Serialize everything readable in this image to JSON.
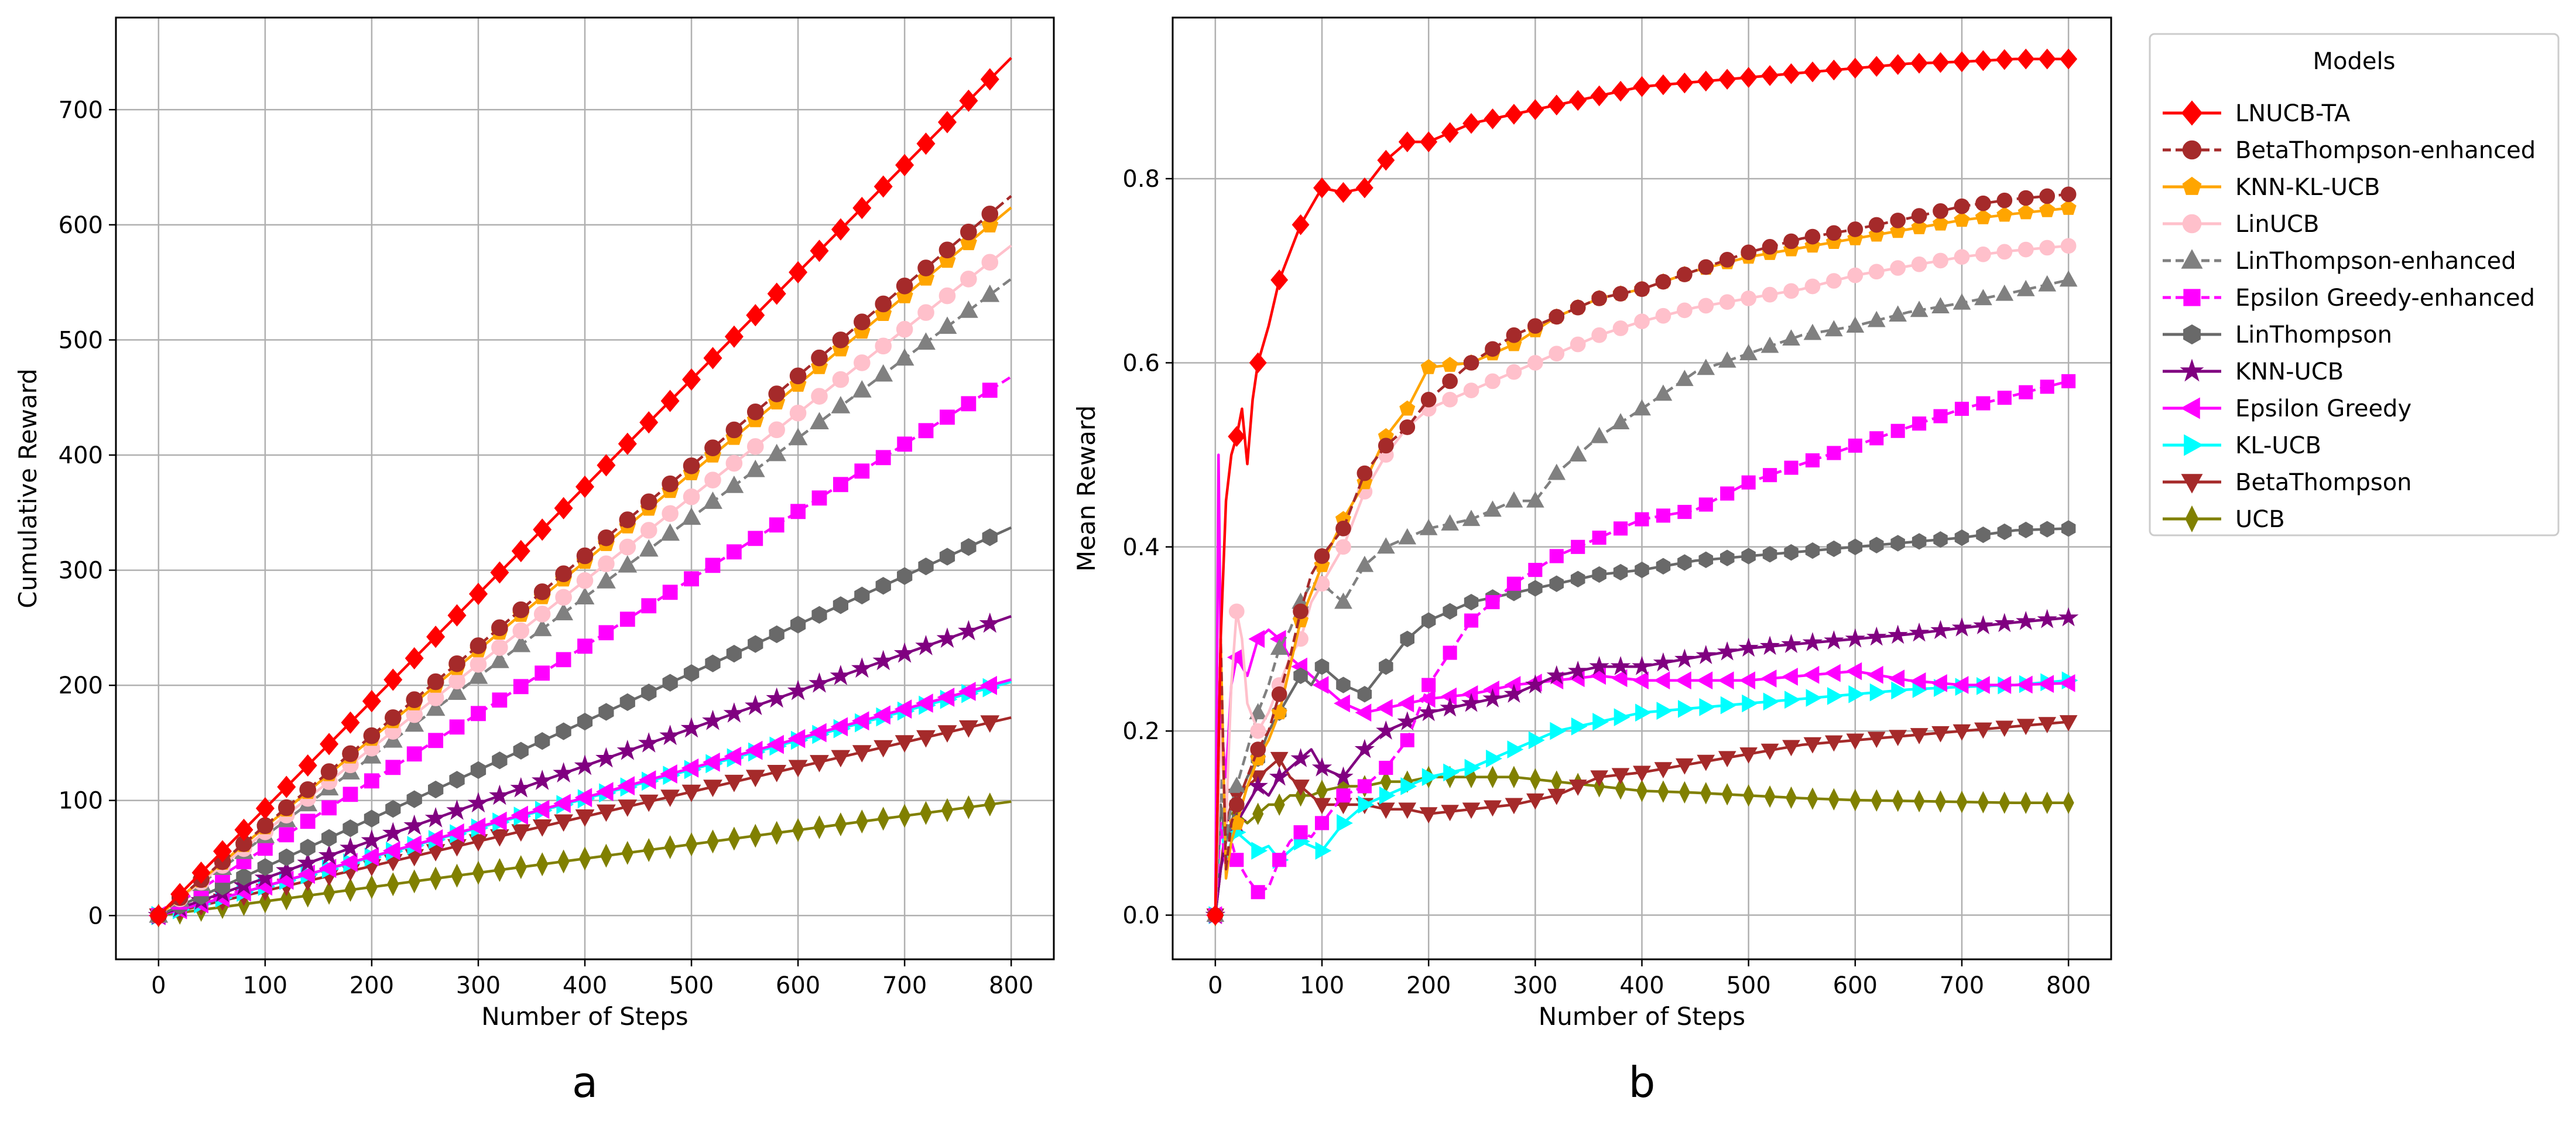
{
  "chart_data": [
    {
      "id": "a",
      "type": "line",
      "panel_label": "a",
      "xlabel": "Number of Steps",
      "ylabel": "Cumulative Reward",
      "xlim": [
        -40,
        840
      ],
      "ylim": [
        -38,
        780
      ],
      "xticks": [
        0,
        100,
        200,
        300,
        400,
        500,
        600,
        700,
        800
      ],
      "yticks": [
        0,
        100,
        200,
        300,
        400,
        500,
        600,
        700
      ],
      "grid": true,
      "series": [
        {
          "name": "LNUCB-TA",
          "final": 745
        },
        {
          "name": "BetaThompson-enhanced",
          "final": 625
        },
        {
          "name": "KNN-KL-UCB",
          "final": 615
        },
        {
          "name": "LinUCB",
          "final": 582
        },
        {
          "name": "LinThompson-enhanced",
          "final": 553
        },
        {
          "name": "Epsilon Greedy-enhanced",
          "final": 468
        },
        {
          "name": "LinThompson",
          "final": 337
        },
        {
          "name": "KNN-UCB",
          "final": 260
        },
        {
          "name": "Epsilon Greedy",
          "final": 205
        },
        {
          "name": "KL-UCB",
          "final": 203
        },
        {
          "name": "BetaThompson",
          "final": 172
        },
        {
          "name": "UCB",
          "final": 99
        }
      ]
    },
    {
      "id": "b",
      "type": "line",
      "panel_label": "b",
      "xlabel": "Number of Steps",
      "ylabel": "Mean Reward",
      "xlim": [
        -40,
        840
      ],
      "ylim": [
        -0.048,
        0.975
      ],
      "xticks": [
        0,
        100,
        200,
        300,
        400,
        500,
        600,
        700,
        800
      ],
      "yticks": [
        0.0,
        0.2,
        0.4,
        0.6,
        0.8
      ],
      "grid": true,
      "series": [
        {
          "name": "LNUCB-TA",
          "x": [
            0,
            5,
            10,
            15,
            20,
            25,
            30,
            35,
            40,
            50,
            60,
            70,
            80,
            90,
            100,
            120,
            140,
            160,
            180,
            200,
            240,
            280,
            320,
            360,
            400,
            450,
            500,
            550,
            600,
            650,
            700,
            750,
            800
          ],
          "y": [
            0,
            0.3,
            0.45,
            0.5,
            0.52,
            0.55,
            0.49,
            0.56,
            0.6,
            0.64,
            0.69,
            0.72,
            0.75,
            0.77,
            0.79,
            0.785,
            0.79,
            0.82,
            0.84,
            0.84,
            0.86,
            0.87,
            0.88,
            0.89,
            0.9,
            0.905,
            0.91,
            0.915,
            0.92,
            0.925,
            0.927,
            0.93,
            0.93
          ]
        },
        {
          "name": "BetaThompson-enhanced",
          "x": [
            0,
            5,
            10,
            15,
            20,
            30,
            40,
            50,
            60,
            70,
            80,
            90,
            100,
            120,
            140,
            160,
            180,
            200,
            240,
            280,
            320,
            360,
            400,
            450,
            500,
            550,
            600,
            650,
            700,
            750,
            800
          ],
          "y": [
            0,
            0.3,
            0.05,
            0.1,
            0.12,
            0.15,
            0.18,
            0.2,
            0.24,
            0.28,
            0.33,
            0.37,
            0.39,
            0.42,
            0.48,
            0.51,
            0.53,
            0.56,
            0.6,
            0.63,
            0.65,
            0.67,
            0.68,
            0.7,
            0.72,
            0.735,
            0.745,
            0.757,
            0.77,
            0.778,
            0.783
          ]
        },
        {
          "name": "KNN-KL-UCB",
          "x": [
            0,
            5,
            10,
            15,
            20,
            30,
            40,
            50,
            60,
            70,
            80,
            90,
            100,
            120,
            140,
            160,
            180,
            200,
            240,
            280,
            320,
            360,
            400,
            450,
            500,
            550,
            600,
            650,
            700,
            750,
            800
          ],
          "y": [
            0,
            0.3,
            0.04,
            0.08,
            0.1,
            0.14,
            0.17,
            0.19,
            0.22,
            0.27,
            0.32,
            0.35,
            0.38,
            0.43,
            0.47,
            0.52,
            0.55,
            0.595,
            0.6,
            0.62,
            0.65,
            0.67,
            0.68,
            0.7,
            0.715,
            0.725,
            0.735,
            0.745,
            0.755,
            0.762,
            0.768
          ]
        },
        {
          "name": "LinUCB",
          "x": [
            0,
            5,
            10,
            15,
            20,
            25,
            30,
            40,
            50,
            60,
            70,
            80,
            90,
            100,
            120,
            140,
            160,
            180,
            200,
            240,
            280,
            320,
            360,
            400,
            450,
            500,
            550,
            600,
            650,
            700,
            750,
            800
          ],
          "y": [
            0,
            0.2,
            0.1,
            0.25,
            0.33,
            0.3,
            0.23,
            0.2,
            0.22,
            0.25,
            0.28,
            0.3,
            0.34,
            0.36,
            0.4,
            0.46,
            0.5,
            0.53,
            0.55,
            0.57,
            0.59,
            0.61,
            0.63,
            0.645,
            0.66,
            0.67,
            0.68,
            0.695,
            0.705,
            0.715,
            0.722,
            0.727
          ]
        },
        {
          "name": "LinThompson-enhanced",
          "x": [
            0,
            5,
            10,
            15,
            20,
            30,
            40,
            50,
            60,
            70,
            80,
            90,
            100,
            120,
            140,
            160,
            180,
            200,
            240,
            280,
            300,
            320,
            360,
            400,
            450,
            500,
            550,
            600,
            650,
            700,
            750,
            800
          ],
          "y": [
            0,
            0.15,
            0.08,
            0.12,
            0.14,
            0.18,
            0.22,
            0.25,
            0.29,
            0.31,
            0.34,
            0.36,
            0.36,
            0.34,
            0.38,
            0.4,
            0.41,
            0.42,
            0.43,
            0.45,
            0.45,
            0.48,
            0.52,
            0.55,
            0.59,
            0.61,
            0.63,
            0.64,
            0.655,
            0.665,
            0.677,
            0.69
          ]
        },
        {
          "name": "Epsilon Greedy-enhanced",
          "x": [
            0,
            5,
            10,
            15,
            20,
            30,
            40,
            50,
            60,
            70,
            80,
            90,
            100,
            120,
            140,
            160,
            180,
            200,
            240,
            280,
            320,
            360,
            400,
            450,
            500,
            550,
            600,
            650,
            700,
            750,
            800
          ],
          "y": [
            0,
            0.1,
            0.05,
            0.08,
            0.06,
            0.04,
            0.025,
            0.03,
            0.06,
            0.08,
            0.09,
            0.085,
            0.1,
            0.13,
            0.14,
            0.16,
            0.19,
            0.25,
            0.32,
            0.36,
            0.39,
            0.41,
            0.43,
            0.44,
            0.47,
            0.49,
            0.51,
            0.53,
            0.55,
            0.565,
            0.58
          ]
        },
        {
          "name": "LinThompson",
          "x": [
            0,
            5,
            10,
            15,
            20,
            30,
            40,
            50,
            60,
            70,
            80,
            90,
            100,
            120,
            140,
            160,
            180,
            200,
            240,
            280,
            320,
            360,
            400,
            450,
            500,
            550,
            600,
            650,
            700,
            750,
            800
          ],
          "y": [
            0,
            0.12,
            0.08,
            0.1,
            0.12,
            0.15,
            0.17,
            0.2,
            0.22,
            0.24,
            0.26,
            0.25,
            0.27,
            0.25,
            0.24,
            0.27,
            0.3,
            0.32,
            0.34,
            0.35,
            0.36,
            0.37,
            0.375,
            0.385,
            0.39,
            0.395,
            0.4,
            0.405,
            0.41,
            0.418,
            0.42
          ]
        },
        {
          "name": "KNN-UCB",
          "x": [
            0,
            5,
            10,
            15,
            20,
            30,
            40,
            50,
            60,
            70,
            80,
            90,
            100,
            120,
            140,
            160,
            180,
            200,
            240,
            280,
            320,
            360,
            400,
            450,
            500,
            550,
            600,
            650,
            700,
            750,
            800
          ],
          "y": [
            0,
            0.05,
            0.08,
            0.1,
            0.1,
            0.12,
            0.14,
            0.13,
            0.15,
            0.16,
            0.17,
            0.18,
            0.16,
            0.15,
            0.18,
            0.2,
            0.21,
            0.22,
            0.23,
            0.24,
            0.26,
            0.27,
            0.27,
            0.28,
            0.29,
            0.295,
            0.3,
            0.305,
            0.312,
            0.318,
            0.323
          ]
        },
        {
          "name": "Epsilon Greedy",
          "x": [
            0,
            3,
            6,
            10,
            15,
            20,
            30,
            40,
            50,
            60,
            70,
            80,
            90,
            100,
            120,
            140,
            160,
            180,
            200,
            240,
            280,
            320,
            360,
            400,
            450,
            500,
            550,
            600,
            650,
            700,
            750,
            800
          ],
          "y": [
            0,
            0.5,
            0.2,
            0.15,
            0.25,
            0.28,
            0.26,
            0.3,
            0.31,
            0.3,
            0.28,
            0.27,
            0.26,
            0.25,
            0.23,
            0.22,
            0.225,
            0.23,
            0.235,
            0.24,
            0.25,
            0.255,
            0.26,
            0.255,
            0.255,
            0.255,
            0.26,
            0.265,
            0.255,
            0.25,
            0.25,
            0.252
          ]
        },
        {
          "name": "KL-UCB",
          "x": [
            0,
            5,
            10,
            15,
            20,
            30,
            40,
            50,
            60,
            70,
            80,
            90,
            100,
            120,
            140,
            160,
            180,
            200,
            240,
            280,
            320,
            360,
            400,
            450,
            500,
            550,
            600,
            650,
            700,
            750,
            800
          ],
          "y": [
            0,
            0.1,
            0.06,
            0.08,
            0.09,
            0.08,
            0.07,
            0.075,
            0.06,
            0.07,
            0.08,
            0.075,
            0.07,
            0.1,
            0.12,
            0.13,
            0.14,
            0.15,
            0.16,
            0.18,
            0.2,
            0.21,
            0.22,
            0.225,
            0.23,
            0.235,
            0.24,
            0.245,
            0.248,
            0.25,
            0.255
          ]
        },
        {
          "name": "BetaThompson",
          "x": [
            0,
            5,
            10,
            15,
            20,
            30,
            40,
            50,
            60,
            70,
            80,
            90,
            100,
            120,
            140,
            160,
            180,
            200,
            240,
            280,
            320,
            360,
            400,
            450,
            500,
            550,
            600,
            650,
            700,
            750,
            800
          ],
          "y": [
            0,
            0.05,
            0.1,
            0.12,
            0.13,
            0.14,
            0.15,
            0.16,
            0.17,
            0.15,
            0.14,
            0.13,
            0.12,
            0.12,
            0.12,
            0.115,
            0.115,
            0.11,
            0.115,
            0.12,
            0.13,
            0.15,
            0.155,
            0.165,
            0.175,
            0.185,
            0.19,
            0.195,
            0.2,
            0.205,
            0.21
          ]
        },
        {
          "name": "UCB",
          "x": [
            0,
            5,
            10,
            15,
            20,
            30,
            40,
            50,
            60,
            70,
            80,
            90,
            100,
            120,
            140,
            160,
            180,
            200,
            240,
            280,
            320,
            360,
            400,
            450,
            500,
            550,
            600,
            650,
            700,
            750,
            800
          ],
          "y": [
            0,
            0.05,
            0.09,
            0.1,
            0.11,
            0.1,
            0.11,
            0.12,
            0.12,
            0.13,
            0.13,
            0.13,
            0.135,
            0.14,
            0.14,
            0.145,
            0.145,
            0.15,
            0.15,
            0.15,
            0.145,
            0.14,
            0.135,
            0.133,
            0.13,
            0.127,
            0.125,
            0.124,
            0.123,
            0.122,
            0.122
          ]
        }
      ]
    }
  ],
  "legend": {
    "title": "Models",
    "location": "upper-right outside",
    "items": [
      {
        "label": "LNUCB-TA",
        "color": "#ff0000",
        "marker": "diamond",
        "dashed": false
      },
      {
        "label": "BetaThompson-enhanced",
        "color": "#a52a2a",
        "marker": "circle",
        "dashed": true
      },
      {
        "label": "KNN-KL-UCB",
        "color": "#ffa500",
        "marker": "pentagon",
        "dashed": false
      },
      {
        "label": "LinUCB",
        "color": "#ffc0cb",
        "marker": "circle",
        "dashed": false
      },
      {
        "label": "LinThompson-enhanced",
        "color": "#808080",
        "marker": "triangle-up",
        "dashed": true
      },
      {
        "label": "Epsilon Greedy-enhanced",
        "color": "#ff00ff",
        "marker": "square",
        "dashed": true
      },
      {
        "label": "LinThompson",
        "color": "#696969",
        "marker": "hexagon",
        "dashed": false
      },
      {
        "label": "KNN-UCB",
        "color": "#800080",
        "marker": "star",
        "dashed": false
      },
      {
        "label": "Epsilon Greedy",
        "color": "#ff00ff",
        "marker": "triangle-left",
        "dashed": false
      },
      {
        "label": "KL-UCB",
        "color": "#00ffff",
        "marker": "triangle-right",
        "dashed": false
      },
      {
        "label": "BetaThompson",
        "color": "#a52a2a",
        "marker": "triangle-down",
        "dashed": false
      },
      {
        "label": "UCB",
        "color": "#808000",
        "marker": "thin-diamond",
        "dashed": false
      }
    ]
  }
}
